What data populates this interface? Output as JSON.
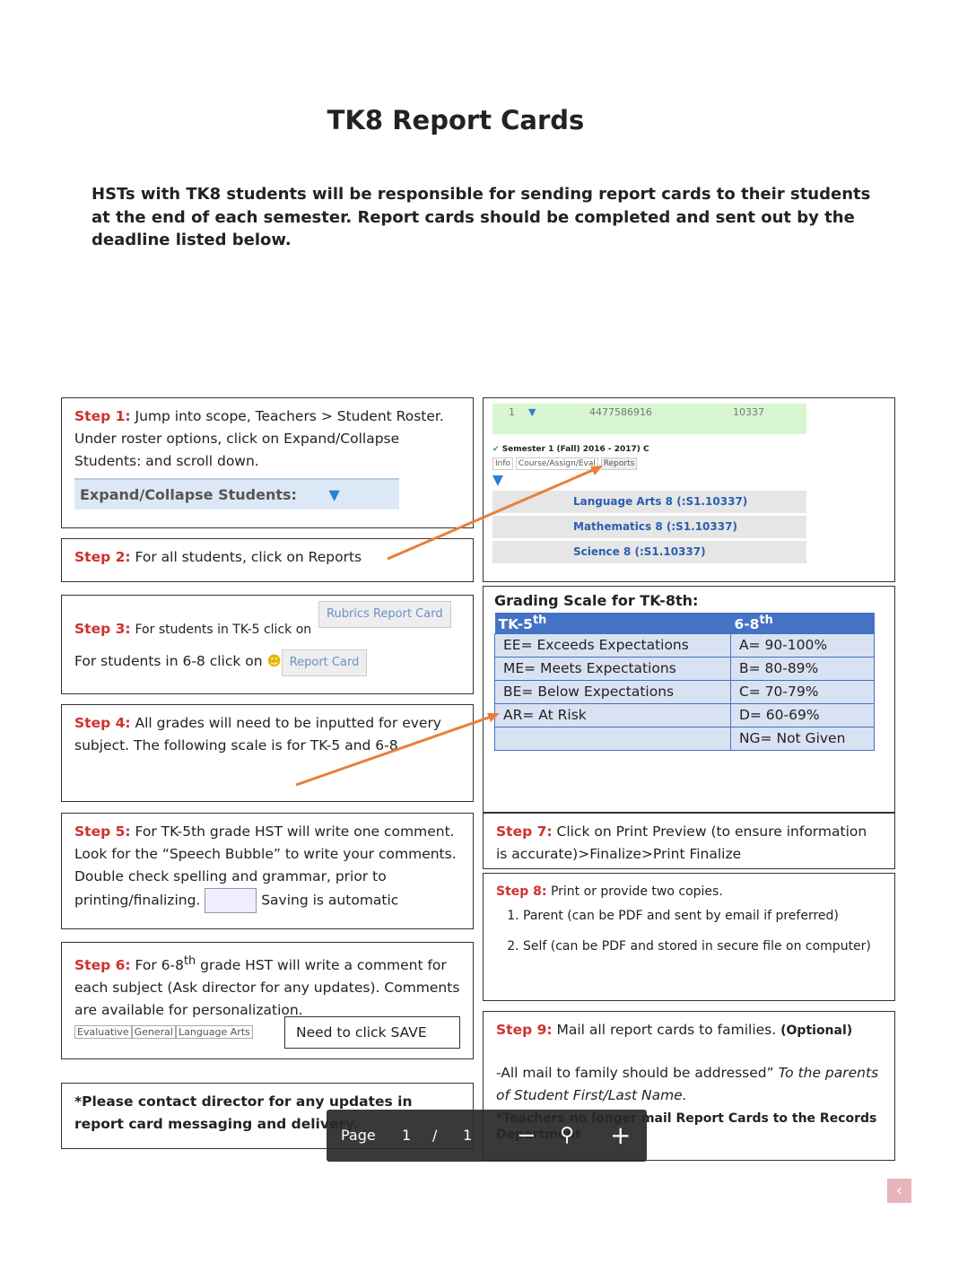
{
  "title": "TK8 Report Cards",
  "intro": "HSTs with TK8 students will be responsible for sending report cards to their students at the end of each semester.  Report cards should be completed and sent out by the deadline listed below.",
  "step1": {
    "label": "Step 1:",
    "text": "Jump into scope, Teachers > Student Roster. Under roster options, click on Expand/Collapse Students: and scroll down.",
    "widget": "Expand/Collapse Students:"
  },
  "step2": {
    "label": "Step 2:",
    "text": "For all students, click on Reports"
  },
  "roster": {
    "row": [
      1,
      4477586916,
      10337
    ],
    "semester": "Semester 1 (Fall) 2016 - 2017) C",
    "tabs": [
      "Info",
      "Course/Assign/Eval",
      "Reports"
    ],
    "courses": [
      "Language Arts 8 (:S1.10337)",
      "Mathematics 8 (:S1.10337)",
      "Science 8 (:S1.10337)"
    ]
  },
  "step3": {
    "label": "Step 3:",
    "line1": "For students in TK-5 click on",
    "button1": "Rubrics Report Card",
    "line2": "For students in 6-8 click on",
    "button2": "Report Card"
  },
  "step4": {
    "label": "Step 4:",
    "text": "All grades will need to be inputted for every subject. The following scale is for TK-5 and 6-8"
  },
  "grading_scale": {
    "title": "Grading Scale for TK-8th:",
    "header": [
      {
        "text": "TK-5",
        "sup": "th"
      },
      {
        "text": "6-8",
        "sup": "th"
      }
    ],
    "rows": [
      [
        "EE= Exceeds Expectations",
        "A= 90-100%"
      ],
      [
        "ME= Meets Expectations",
        "B= 80-89%"
      ],
      [
        "BE= Below Expectations",
        "C= 70-79%"
      ],
      [
        "AR= At Risk",
        "D= 60-69%"
      ]
    ],
    "last_row": "NG= Not Given"
  },
  "step5": {
    "label": "Step 5:",
    "text": "For TK-5th grade HST will write one comment. Look for the “Speech Bubble” to write your comments. Double check spelling and grammar, prior to printing/finalizing.",
    "after": "Saving is automatic"
  },
  "step6": {
    "label": "Step 6:",
    "pre": "For 6-8",
    "sup": "th",
    "text": " grade HST will write a comment for each subject (Ask director for any updates). Comments are available for personalization.",
    "tabs": [
      "Evaluative",
      "General",
      "Language Arts"
    ],
    "save": "Need to click SAVE"
  },
  "note": "*Please contact director for any updates in report card messaging and delivery.",
  "step7": {
    "label": "Step 7:",
    "text": "Click on Print Preview (to ensure information is accurate)>Finalize>Print Finalize"
  },
  "step8": {
    "label": "Step 8:",
    "text": "Print or provide two copies.",
    "items": [
      "Parent (can be PDF and sent by email if preferred)",
      "Self (can be PDF and stored in secure file on computer)"
    ]
  },
  "step9": {
    "label": "Step 9:",
    "text": "Mail all report cards to families.",
    "optional": "(Optional)",
    "line2": "-All mail to family should be addressed” ",
    "italic": "To the parents of Student First/Last Name.",
    "line3": "*Teachers no longer mail Report Cards to the Records Department"
  },
  "toolbar": {
    "page": "Page",
    "current": 1,
    "sep": "/",
    "total": 1
  }
}
